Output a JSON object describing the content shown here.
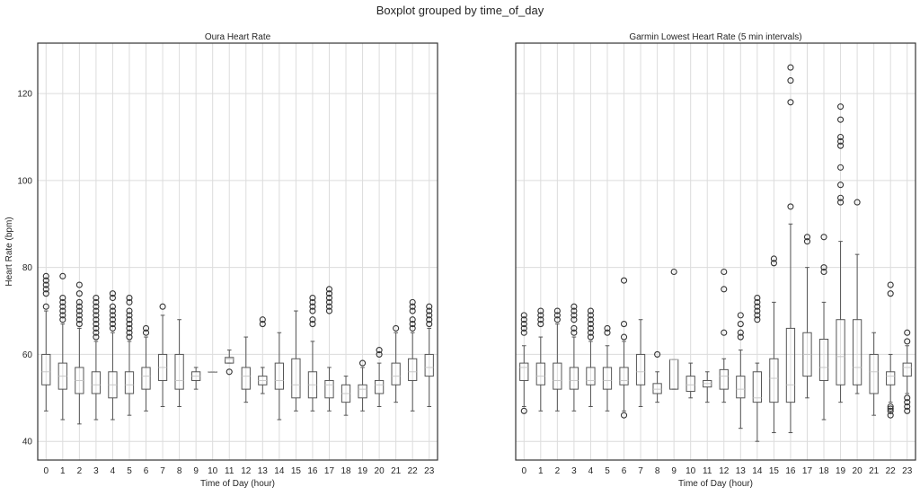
{
  "suptitle": "Boxplot grouped by time_of_day",
  "chart_data": [
    {
      "type": "box",
      "title": "Oura Heart Rate",
      "xlabel": "Time of Day (hour)",
      "ylabel": "Heart Rate (bpm)",
      "ylim": [
        35.7,
        131.6
      ],
      "yticks": [
        40,
        60,
        80,
        100,
        120
      ],
      "grid": true,
      "categories": [
        "0",
        "1",
        "2",
        "3",
        "4",
        "5",
        "6",
        "7",
        "8",
        "9",
        "10",
        "11",
        "12",
        "13",
        "14",
        "15",
        "16",
        "17",
        "18",
        "19",
        "20",
        "21",
        "22",
        "23"
      ],
      "boxes": [
        {
          "whislo": 47,
          "q1": 53,
          "med": 56,
          "q3": 60,
          "whishi": 70,
          "fliers": [
            71,
            74,
            75,
            76,
            77,
            78
          ]
        },
        {
          "whislo": 45,
          "q1": 52,
          "med": 55,
          "q3": 58,
          "whishi": 67,
          "fliers": [
            68,
            69,
            70,
            71,
            72,
            73,
            78
          ]
        },
        {
          "whislo": 44,
          "q1": 51,
          "med": 54,
          "q3": 57,
          "whishi": 66,
          "fliers": [
            67,
            68,
            69,
            70,
            71,
            72,
            74,
            76
          ]
        },
        {
          "whislo": 45,
          "q1": 51,
          "med": 53,
          "q3": 56,
          "whishi": 63,
          "fliers": [
            64,
            65,
            66,
            67,
            68,
            69,
            70,
            71,
            72,
            73
          ]
        },
        {
          "whislo": 45,
          "q1": 50,
          "med": 53,
          "q3": 56,
          "whishi": 65,
          "fliers": [
            66,
            67,
            68,
            69,
            70,
            71,
            73,
            74
          ]
        },
        {
          "whislo": 46,
          "q1": 51,
          "med": 53,
          "q3": 56,
          "whishi": 63,
          "fliers": [
            64,
            65,
            66,
            67,
            68,
            69,
            70,
            72,
            73
          ]
        },
        {
          "whislo": 47,
          "q1": 52,
          "med": 55,
          "q3": 57,
          "whishi": 64,
          "fliers": [
            65,
            66
          ]
        },
        {
          "whislo": 48,
          "q1": 54,
          "med": 57,
          "q3": 60,
          "whishi": 69,
          "fliers": [
            71
          ]
        },
        {
          "whislo": 48,
          "q1": 52,
          "med": 54,
          "q3": 60,
          "whishi": 68,
          "fliers": []
        },
        {
          "whislo": 52,
          "q1": 54,
          "med": 55,
          "q3": 56,
          "whishi": 57,
          "fliers": []
        },
        {
          "whislo": 56,
          "q1": 56,
          "med": 56,
          "q3": 56,
          "whishi": 56,
          "fliers": []
        },
        {
          "whislo": 58,
          "q1": 58,
          "med": 59,
          "q3": 59.3,
          "whishi": 61,
          "fliers": [
            56
          ]
        },
        {
          "whislo": 49,
          "q1": 52,
          "med": 55,
          "q3": 57,
          "whishi": 64,
          "fliers": []
        },
        {
          "whislo": 51,
          "q1": 53,
          "med": 54,
          "q3": 55,
          "whishi": 57,
          "fliers": [
            67,
            68
          ]
        },
        {
          "whislo": 45,
          "q1": 52,
          "med": 54,
          "q3": 58,
          "whishi": 65,
          "fliers": []
        },
        {
          "whislo": 47,
          "q1": 50,
          "med": 53,
          "q3": 59,
          "whishi": 70,
          "fliers": []
        },
        {
          "whislo": 47,
          "q1": 50,
          "med": 53,
          "q3": 56,
          "whishi": 63,
          "fliers": [
            67,
            68,
            70,
            71,
            72,
            73
          ]
        },
        {
          "whislo": 47,
          "q1": 50,
          "med": 53,
          "q3": 54,
          "whishi": 57,
          "fliers": [
            70,
            71,
            72,
            73,
            74,
            75
          ]
        },
        {
          "whislo": 46,
          "q1": 49,
          "med": 51,
          "q3": 53,
          "whishi": 55,
          "fliers": []
        },
        {
          "whislo": 47,
          "q1": 50,
          "med": 52,
          "q3": 53,
          "whishi": 57,
          "fliers": [
            58
          ]
        },
        {
          "whislo": 48,
          "q1": 51,
          "med": 53,
          "q3": 54,
          "whishi": 58,
          "fliers": [
            60,
            61
          ]
        },
        {
          "whislo": 49,
          "q1": 53,
          "med": 55,
          "q3": 58,
          "whishi": 65,
          "fliers": [
            66
          ]
        },
        {
          "whislo": 47,
          "q1": 54,
          "med": 56,
          "q3": 59,
          "whishi": 65,
          "fliers": [
            66,
            67,
            68,
            70,
            71,
            72
          ]
        },
        {
          "whislo": 48,
          "q1": 55,
          "med": 57,
          "q3": 60,
          "whishi": 66,
          "fliers": [
            67,
            68,
            69,
            70,
            71
          ]
        }
      ]
    },
    {
      "type": "box",
      "title": "Garmin Lowest Heart Rate (5 min intervals)",
      "xlabel": "Time of Day (hour)",
      "ylabel": "",
      "ylim": [
        35.7,
        131.6
      ],
      "yticks": [
        40,
        60,
        80,
        100,
        120
      ],
      "sharey": true,
      "grid": true,
      "categories": [
        "0",
        "1",
        "2",
        "3",
        "4",
        "5",
        "6",
        "7",
        "8",
        "9",
        "10",
        "11",
        "12",
        "13",
        "14",
        "15",
        "16",
        "17",
        "18",
        "19",
        "20",
        "21",
        "22",
        "23"
      ],
      "boxes": [
        {
          "whislo": 48,
          "q1": 54,
          "med": 57,
          "q3": 58,
          "whishi": 62,
          "fliers": [
            47,
            65,
            66,
            67,
            68,
            69
          ]
        },
        {
          "whislo": 47,
          "q1": 53,
          "med": 55,
          "q3": 58,
          "whishi": 64,
          "fliers": [
            67,
            68,
            69,
            70
          ]
        },
        {
          "whislo": 47,
          "q1": 52,
          "med": 54,
          "q3": 58,
          "whishi": 67,
          "fliers": [
            68,
            69,
            70
          ]
        },
        {
          "whislo": 47,
          "q1": 52,
          "med": 54,
          "q3": 57,
          "whishi": 64,
          "fliers": [
            65,
            66,
            68,
            69,
            70,
            71
          ]
        },
        {
          "whislo": 48,
          "q1": 53,
          "med": 54,
          "q3": 57,
          "whishi": 63,
          "fliers": [
            64,
            65,
            66,
            67,
            68,
            69,
            70
          ]
        },
        {
          "whislo": 47,
          "q1": 52,
          "med": 54,
          "q3": 57,
          "whishi": 62,
          "fliers": [
            65,
            66
          ]
        },
        {
          "whislo": 47,
          "q1": 53,
          "med": 54,
          "q3": 57,
          "whishi": 63,
          "fliers": [
            46,
            64,
            67,
            77
          ]
        },
        {
          "whislo": 48,
          "q1": 53,
          "med": 56,
          "q3": 60,
          "whishi": 68,
          "fliers": []
        },
        {
          "whislo": 49,
          "q1": 51,
          "med": 52,
          "q3": 53.3,
          "whishi": 56,
          "fliers": [
            60
          ]
        },
        {
          "whislo": 52,
          "q1": 52,
          "med": 58.8,
          "q3": 58.8,
          "whishi": 58.8,
          "fliers": [
            79
          ]
        },
        {
          "whislo": 50,
          "q1": 51.5,
          "med": 53,
          "q3": 55,
          "whishi": 58,
          "fliers": []
        },
        {
          "whislo": 49,
          "q1": 52.5,
          "med": 53.3,
          "q3": 54,
          "whishi": 56,
          "fliers": []
        },
        {
          "whislo": 49,
          "q1": 52,
          "med": 55,
          "q3": 56.5,
          "whishi": 59,
          "fliers": [
            65,
            75,
            79
          ]
        },
        {
          "whislo": 43,
          "q1": 50,
          "med": 52,
          "q3": 55,
          "whishi": 61,
          "fliers": [
            64,
            65,
            67,
            69
          ]
        },
        {
          "whislo": 40,
          "q1": 49,
          "med": 50,
          "q3": 56,
          "whishi": 58,
          "fliers": [
            68,
            69,
            70,
            71,
            72,
            73
          ]
        },
        {
          "whislo": 42,
          "q1": 49,
          "med": 54.5,
          "q3": 59,
          "whishi": 72,
          "fliers": [
            81,
            82
          ]
        },
        {
          "whislo": 42,
          "q1": 49,
          "med": 53,
          "q3": 66,
          "whishi": 90,
          "fliers": [
            94,
            118,
            123,
            126
          ]
        },
        {
          "whislo": 50,
          "q1": 55,
          "med": 60,
          "q3": 65,
          "whishi": 80,
          "fliers": [
            86,
            87
          ]
        },
        {
          "whislo": 45,
          "q1": 54,
          "med": 57,
          "q3": 63.5,
          "whishi": 72,
          "fliers": [
            79,
            80,
            87
          ]
        },
        {
          "whislo": 49,
          "q1": 53,
          "med": 59.5,
          "q3": 68,
          "whishi": 86,
          "fliers": [
            95,
            96,
            99,
            103,
            108,
            109,
            110,
            114,
            117
          ]
        },
        {
          "whislo": 51,
          "q1": 53,
          "med": 57,
          "q3": 68,
          "whishi": 83,
          "fliers": [
            95
          ]
        },
        {
          "whislo": 46,
          "q1": 51,
          "med": 56,
          "q3": 60,
          "whishi": 65,
          "fliers": []
        },
        {
          "whislo": 49,
          "q1": 53,
          "med": 55,
          "q3": 56,
          "whishi": 60,
          "fliers": [
            46,
            47,
            47.5,
            48,
            74,
            76
          ]
        },
        {
          "whislo": 51,
          "q1": 55,
          "med": 57,
          "q3": 58,
          "whishi": 62,
          "fliers": [
            47,
            48,
            49,
            50,
            63,
            65
          ]
        }
      ]
    }
  ]
}
